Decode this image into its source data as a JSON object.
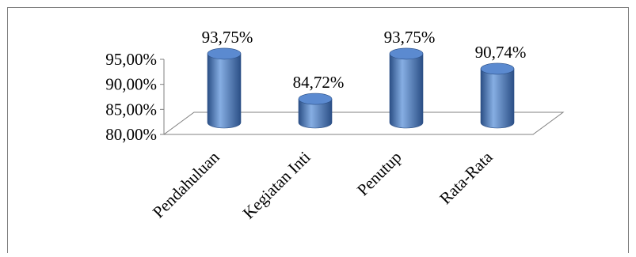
{
  "chart_data": {
    "type": "bar",
    "style": "3d-cylinder",
    "categories": [
      "Pendahuluan",
      "Kegiatan Inti",
      "Penutup",
      "Rata-Rata"
    ],
    "values": [
      93.75,
      84.72,
      93.75,
      90.74
    ],
    "data_labels": [
      "93,75%",
      "84,72%",
      "93,75%",
      "90,74%"
    ],
    "ylim": [
      80,
      95
    ],
    "yticks": [
      80,
      85,
      90,
      95
    ],
    "ytick_labels": [
      "80,00%",
      "85,00%",
      "90,00%",
      "95,00%"
    ],
    "legend": "none",
    "grid": false,
    "colors": {
      "bar": "#4a78bf",
      "bar_dark": "#2b4f86",
      "bar_light": "#86aee3",
      "bar_top": "#5b8ad0",
      "axis": "#808080",
      "frame": "#808080"
    }
  }
}
